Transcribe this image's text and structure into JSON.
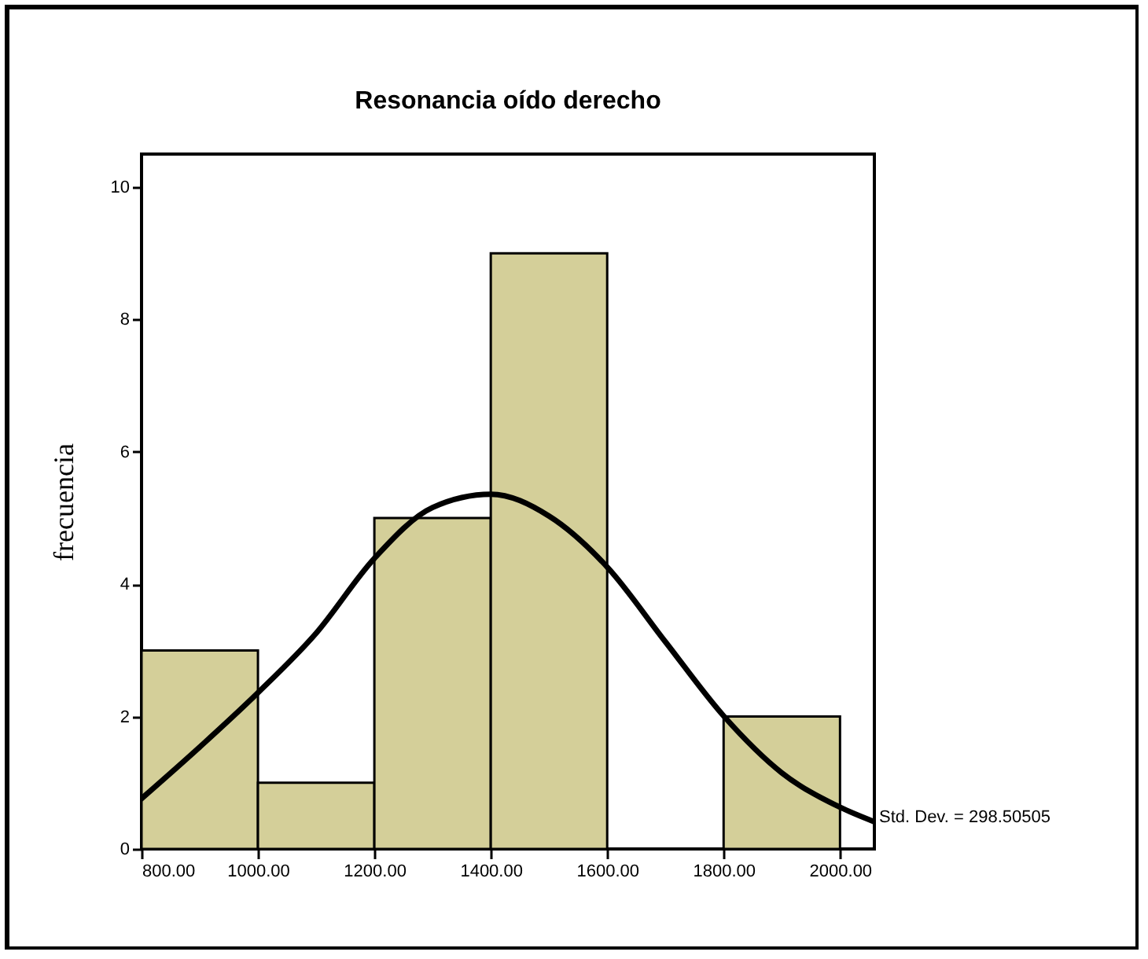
{
  "chart_data": {
    "type": "histogram",
    "title": "Resonancia  oído derecho",
    "ylabel": "frecuencia",
    "bins": [
      800,
      1000,
      1200,
      1400,
      1600,
      1800,
      2000
    ],
    "values": [
      3,
      1,
      5,
      9,
      0,
      2
    ],
    "color": "#d4cf99",
    "series": [
      {
        "type": "line",
        "color": "#000000",
        "x": [
          800,
          900,
          1000,
          1100,
          1200,
          1300,
          1400,
          1500,
          1600,
          1700,
          1800,
          1900,
          2000,
          2059
        ],
        "values": [
          0.76,
          1.54,
          2.36,
          3.26,
          4.39,
          5.16,
          5.36,
          5.03,
          4.26,
          3.13,
          2.01,
          1.15,
          0.63,
          0.41
        ]
      }
    ],
    "xlim": [
      800,
      2059
    ],
    "ylim": [
      0,
      10.5
    ],
    "xticks": [
      {
        "value": 800,
        "label": "800.00"
      },
      {
        "value": 1000,
        "label": "1000.00"
      },
      {
        "value": 1200,
        "label": "1200.00"
      },
      {
        "value": 1400,
        "label": "1400.00"
      },
      {
        "value": 1600,
        "label": "1600.00"
      },
      {
        "value": 1800,
        "label": "1800.00"
      },
      {
        "value": 2000,
        "label": "2000.00"
      }
    ],
    "yticks": [
      0,
      2,
      4,
      6,
      8,
      10
    ],
    "annotations": [
      "Std. Dev. = 298.50505"
    ],
    "grid": false
  }
}
